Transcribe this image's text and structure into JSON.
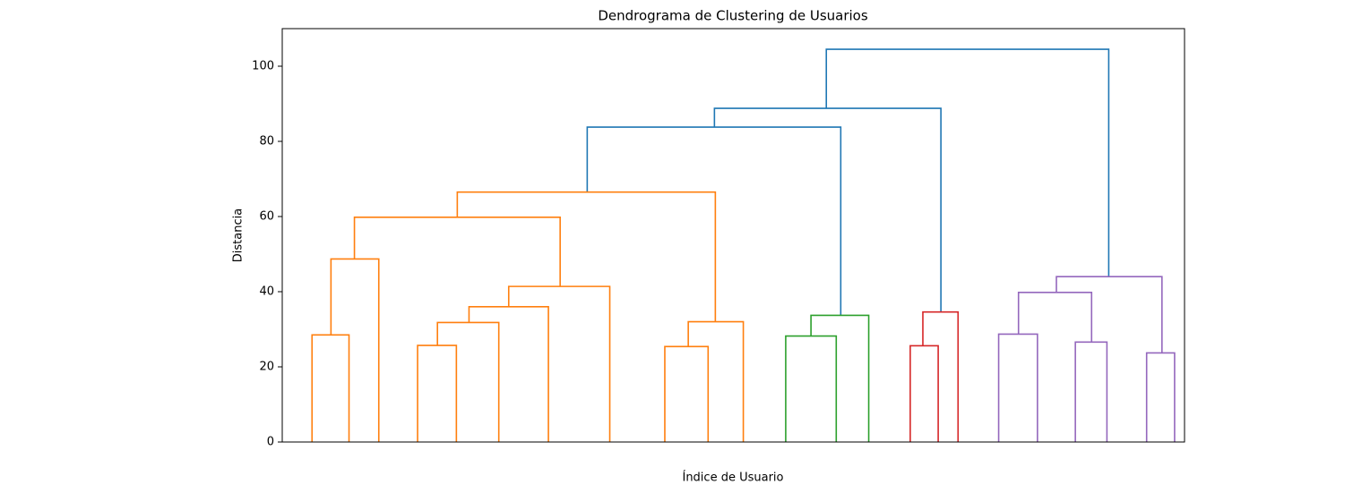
{
  "chart_data": {
    "type": "dendrogram",
    "title": "Dendrograma de Clustering de Usuarios",
    "xlabel": "Índice de Usuario",
    "ylabel": "Distancia",
    "xlim": [
      0,
      1000
    ],
    "ylim": [
      0,
      110
    ],
    "yticks": [
      0,
      20,
      40,
      60,
      80,
      100
    ],
    "links": [
      {
        "color": "#1f77b4",
        "x": [
          603,
          603,
          916,
          916
        ],
        "y": [
          88.8,
          104.5,
          104.5,
          44
        ]
      },
      {
        "color": "#1f77b4",
        "x": [
          479,
          479,
          730,
          730
        ],
        "y": [
          83.8,
          88.8,
          88.8,
          34.6
        ]
      },
      {
        "color": "#1f77b4",
        "x": [
          338,
          338,
          619,
          619
        ],
        "y": [
          66.5,
          83.8,
          83.8,
          33.7
        ]
      },
      {
        "color": "#ff7f0e",
        "x": [
          194,
          194,
          480,
          480
        ],
        "y": [
          59.8,
          66.5,
          66.5,
          32
        ]
      },
      {
        "color": "#ff7f0e",
        "x": [
          80,
          80,
          308,
          308
        ],
        "y": [
          48.7,
          59.8,
          59.8,
          41.4
        ]
      },
      {
        "color": "#ff7f0e",
        "x": [
          54,
          54,
          107,
          107
        ],
        "y": [
          28.5,
          48.7,
          48.7,
          0
        ]
      },
      {
        "color": "#ff7f0e",
        "x": [
          33,
          33,
          74,
          74
        ],
        "y": [
          0,
          28.5,
          28.5,
          0
        ]
      },
      {
        "color": "#ff7f0e",
        "x": [
          251,
          251,
          363,
          363
        ],
        "y": [
          36,
          41.4,
          41.4,
          0
        ]
      },
      {
        "color": "#ff7f0e",
        "x": [
          207,
          207,
          295,
          295
        ],
        "y": [
          31.8,
          36,
          36,
          0
        ]
      },
      {
        "color": "#ff7f0e",
        "x": [
          172,
          172,
          240,
          240
        ],
        "y": [
          25.7,
          31.8,
          31.8,
          0
        ]
      },
      {
        "color": "#ff7f0e",
        "x": [
          150,
          150,
          193,
          193
        ],
        "y": [
          0,
          25.7,
          25.7,
          0
        ]
      },
      {
        "color": "#ff7f0e",
        "x": [
          450,
          450,
          511,
          511
        ],
        "y": [
          25.4,
          32,
          32,
          0
        ]
      },
      {
        "color": "#ff7f0e",
        "x": [
          424,
          424,
          472,
          472
        ],
        "y": [
          0,
          25.4,
          25.4,
          0
        ]
      },
      {
        "color": "#2ca02c",
        "x": [
          586,
          586,
          650,
          650
        ],
        "y": [
          28.2,
          33.7,
          33.7,
          0
        ]
      },
      {
        "color": "#2ca02c",
        "x": [
          558,
          558,
          614,
          614
        ],
        "y": [
          0,
          28.2,
          28.2,
          0
        ]
      },
      {
        "color": "#d62728",
        "x": [
          710,
          710,
          749,
          749
        ],
        "y": [
          25.6,
          34.6,
          34.6,
          0
        ]
      },
      {
        "color": "#d62728",
        "x": [
          696,
          696,
          727,
          727
        ],
        "y": [
          0,
          25.6,
          25.6,
          0
        ]
      },
      {
        "color": "#9467bd",
        "x": [
          858,
          858,
          975,
          975
        ],
        "y": [
          39.8,
          44,
          44,
          23.7
        ]
      },
      {
        "color": "#9467bd",
        "x": [
          816,
          816,
          897,
          897
        ],
        "y": [
          28.7,
          39.8,
          39.8,
          26.6
        ]
      },
      {
        "color": "#9467bd",
        "x": [
          794,
          794,
          837,
          837
        ],
        "y": [
          0,
          28.7,
          28.7,
          0
        ]
      },
      {
        "color": "#9467bd",
        "x": [
          879,
          879,
          914,
          914
        ],
        "y": [
          0,
          26.6,
          26.6,
          0
        ]
      },
      {
        "color": "#9467bd",
        "x": [
          958,
          958,
          989,
          989
        ],
        "y": [
          0,
          23.7,
          23.7,
          0
        ]
      }
    ]
  }
}
